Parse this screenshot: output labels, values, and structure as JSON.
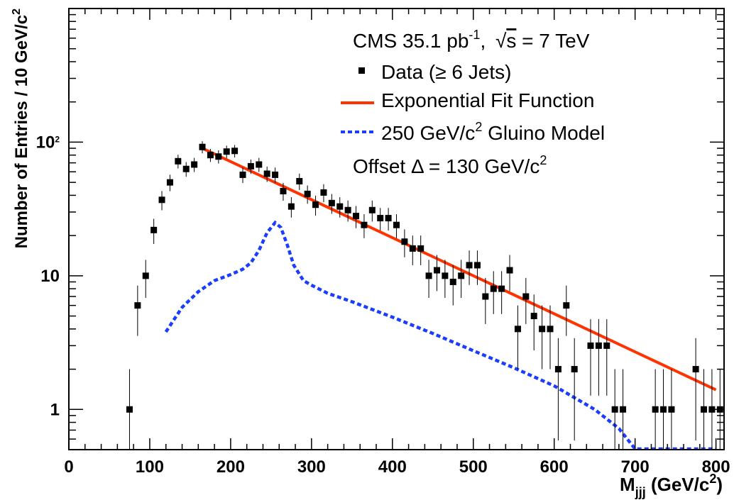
{
  "chart_data": {
    "type": "scatter",
    "title": "",
    "xlabel": {
      "main": "M",
      "sub": "jjj",
      "unit_pre": " (GeV/c",
      "unit_sup": "2",
      "unit_post": ")"
    },
    "ylabel": {
      "main": "Number of Entries / 10 GeV/c",
      "sup": "2"
    },
    "xlim": [
      0,
      810
    ],
    "ylim": [
      0.5,
      1000
    ],
    "y_scale": "log",
    "x_ticks": [
      "0",
      "100",
      "200",
      "300",
      "400",
      "500",
      "600",
      "700",
      "800"
    ],
    "y_ticks": [
      {
        "base": "1",
        "exp": ""
      },
      {
        "base": "10",
        "exp": ""
      },
      {
        "base": "10",
        "exp": "2"
      }
    ],
    "grid": false,
    "legend": {
      "placement": "top-right",
      "header": {
        "pre": "CMS  35.1 pb",
        "sup": "-1",
        "mid": ",  ",
        "sqrt": "s",
        "post": " = 7 TeV"
      },
      "data_label": "Data (≥ 6 Jets)",
      "fit_label": "Exponential Fit Function",
      "model_label": {
        "pre": "250 GeV/c",
        "sup": "2",
        "post": " Gluino Model"
      },
      "offset_label": {
        "pre": "Offset Δ = 130 GeV/c",
        "sup": "2"
      }
    },
    "series": [
      {
        "name": "Data (≥ 6 Jets)",
        "kind": "points",
        "color": "#000000",
        "x": [
          75,
          85,
          95,
          105,
          115,
          125,
          135,
          145,
          155,
          165,
          175,
          185,
          195,
          205,
          215,
          225,
          235,
          245,
          255,
          265,
          275,
          285,
          295,
          305,
          315,
          325,
          335,
          345,
          355,
          365,
          375,
          385,
          395,
          405,
          415,
          425,
          435,
          445,
          455,
          465,
          475,
          485,
          495,
          505,
          515,
          525,
          535,
          545,
          555,
          565,
          575,
          585,
          595,
          605,
          615,
          625,
          635,
          645,
          655,
          665,
          675,
          685,
          695,
          705,
          715,
          725,
          735,
          745,
          755,
          765,
          775,
          785,
          795,
          805
        ],
        "y": [
          1,
          6,
          10,
          22,
          37,
          50,
          72,
          63,
          68,
          92,
          80,
          78,
          85,
          86,
          57,
          66,
          68,
          58,
          57,
          43,
          33,
          51,
          41,
          34,
          42,
          35,
          33,
          31,
          28,
          24,
          31,
          27,
          27,
          24,
          18,
          16,
          16,
          10,
          11,
          10,
          9,
          10,
          12,
          12,
          7,
          8,
          8,
          11,
          4,
          7,
          5,
          4,
          4,
          2,
          6,
          2,
          null,
          3,
          3,
          3,
          1,
          1,
          null,
          null,
          null,
          1,
          1,
          1,
          null,
          null,
          2,
          1,
          1,
          1
        ]
      },
      {
        "name": "Exponential Fit Function",
        "kind": "line",
        "color": "#ff3300",
        "x": [
          165,
          800
        ],
        "y": [
          90,
          1.4
        ]
      },
      {
        "name": "250 GeV/c² Gluino Model",
        "kind": "dashed-line",
        "color": "#1a3dff",
        "x": [
          120,
          140,
          160,
          180,
          200,
          215,
          225,
          235,
          245,
          255,
          262,
          270,
          278,
          290,
          300,
          320,
          350,
          400,
          450,
          500,
          550,
          600,
          650,
          680,
          700,
          750,
          800
        ],
        "y": [
          3.8,
          5.8,
          7.6,
          9.2,
          10.2,
          11.2,
          12.5,
          15.5,
          21,
          25,
          23,
          17,
          12,
          9.2,
          8.5,
          7.4,
          6.4,
          4.9,
          3.7,
          2.75,
          2.05,
          1.5,
          1.0,
          0.72,
          0.5,
          0.5,
          0.5
        ]
      }
    ]
  }
}
